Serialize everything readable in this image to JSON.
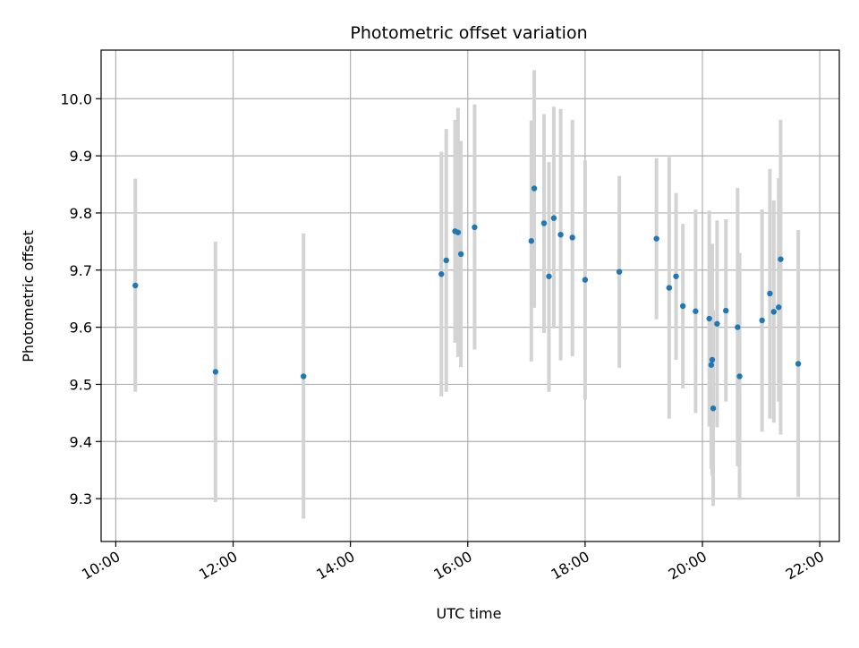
{
  "chart_data": {
    "type": "scatter",
    "title": "Photometric offset variation",
    "xlabel": "UTC time",
    "ylabel": "Photometric offset",
    "grid": true,
    "xlim": [
      "09:45",
      "22:20"
    ],
    "ylim": [
      9.225,
      10.085
    ],
    "x_ticks": [
      "10:00",
      "12:00",
      "14:00",
      "16:00",
      "18:00",
      "20:00",
      "22:00"
    ],
    "y_ticks": [
      "9.3",
      "9.4",
      "9.5",
      "9.6",
      "9.7",
      "9.8",
      "9.9",
      "10.0"
    ],
    "marker_color": "#1f77b4",
    "errorbar_color": "#d3d3d3",
    "points": [
      {
        "x": "10:20",
        "y": 9.673,
        "err_low": 9.487,
        "err_high": 9.86
      },
      {
        "x": "11:42",
        "y": 9.522,
        "err_low": 9.294,
        "err_high": 9.75
      },
      {
        "x": "13:12",
        "y": 9.514,
        "err_low": 9.265,
        "err_high": 9.764
      },
      {
        "x": "15:33",
        "y": 9.693,
        "err_low": 9.479,
        "err_high": 9.907
      },
      {
        "x": "15:38",
        "y": 9.717,
        "err_low": 9.487,
        "err_high": 9.947
      },
      {
        "x": "15:47",
        "y": 9.768,
        "err_low": 9.573,
        "err_high": 9.963
      },
      {
        "x": "15:50",
        "y": 9.766,
        "err_low": 9.548,
        "err_high": 9.984
      },
      {
        "x": "15:53",
        "y": 9.728,
        "err_low": 9.53,
        "err_high": 9.926
      },
      {
        "x": "16:07",
        "y": 9.775,
        "err_low": 9.561,
        "err_high": 9.99
      },
      {
        "x": "17:05",
        "y": 9.751,
        "err_low": 9.54,
        "err_high": 9.962
      },
      {
        "x": "17:08",
        "y": 9.843,
        "err_low": 9.634,
        "err_high": 10.05
      },
      {
        "x": "17:18",
        "y": 9.782,
        "err_low": 9.59,
        "err_high": 9.973
      },
      {
        "x": "17:23",
        "y": 9.689,
        "err_low": 9.487,
        "err_high": 9.889
      },
      {
        "x": "17:28",
        "y": 9.791,
        "err_low": 9.598,
        "err_high": 9.986
      },
      {
        "x": "17:35",
        "y": 9.762,
        "err_low": 9.542,
        "err_high": 9.982
      },
      {
        "x": "17:47",
        "y": 9.757,
        "err_low": 9.549,
        "err_high": 9.963
      },
      {
        "x": "18:00",
        "y": 9.683,
        "err_low": 9.473,
        "err_high": 9.892
      },
      {
        "x": "18:35",
        "y": 9.697,
        "err_low": 9.529,
        "err_high": 9.865
      },
      {
        "x": "19:13",
        "y": 9.755,
        "err_low": 9.614,
        "err_high": 9.896
      },
      {
        "x": "19:26",
        "y": 9.669,
        "err_low": 9.44,
        "err_high": 9.898
      },
      {
        "x": "19:33",
        "y": 9.689,
        "err_low": 9.543,
        "err_high": 9.835
      },
      {
        "x": "19:40",
        "y": 9.637,
        "err_low": 9.493,
        "err_high": 9.781
      },
      {
        "x": "19:53",
        "y": 9.628,
        "err_low": 9.45,
        "err_high": 9.806
      },
      {
        "x": "20:07",
        "y": 9.615,
        "err_low": 9.426,
        "err_high": 9.804
      },
      {
        "x": "20:09",
        "y": 9.534,
        "err_low": 9.352,
        "err_high": 9.716
      },
      {
        "x": "20:10",
        "y": 9.543,
        "err_low": 9.34,
        "err_high": 9.746
      },
      {
        "x": "20:11",
        "y": 9.458,
        "err_low": 9.287,
        "err_high": 9.63
      },
      {
        "x": "20:15",
        "y": 9.606,
        "err_low": 9.425,
        "err_high": 9.787
      },
      {
        "x": "20:24",
        "y": 9.629,
        "err_low": 9.47,
        "err_high": 9.789
      },
      {
        "x": "20:36",
        "y": 9.6,
        "err_low": 9.357,
        "err_high": 9.844
      },
      {
        "x": "20:38",
        "y": 9.514,
        "err_low": 9.298,
        "err_high": 9.73
      },
      {
        "x": "21:01",
        "y": 9.612,
        "err_low": 9.417,
        "err_high": 9.806
      },
      {
        "x": "21:09",
        "y": 9.659,
        "err_low": 9.44,
        "err_high": 9.877
      },
      {
        "x": "21:13",
        "y": 9.627,
        "err_low": 9.433,
        "err_high": 9.822
      },
      {
        "x": "21:18",
        "y": 9.635,
        "err_low": 9.47,
        "err_high": 9.861
      },
      {
        "x": "21:20",
        "y": 9.719,
        "err_low": 9.412,
        "err_high": 9.963
      },
      {
        "x": "21:38",
        "y": 9.536,
        "err_low": 9.303,
        "err_high": 9.77
      }
    ]
  }
}
